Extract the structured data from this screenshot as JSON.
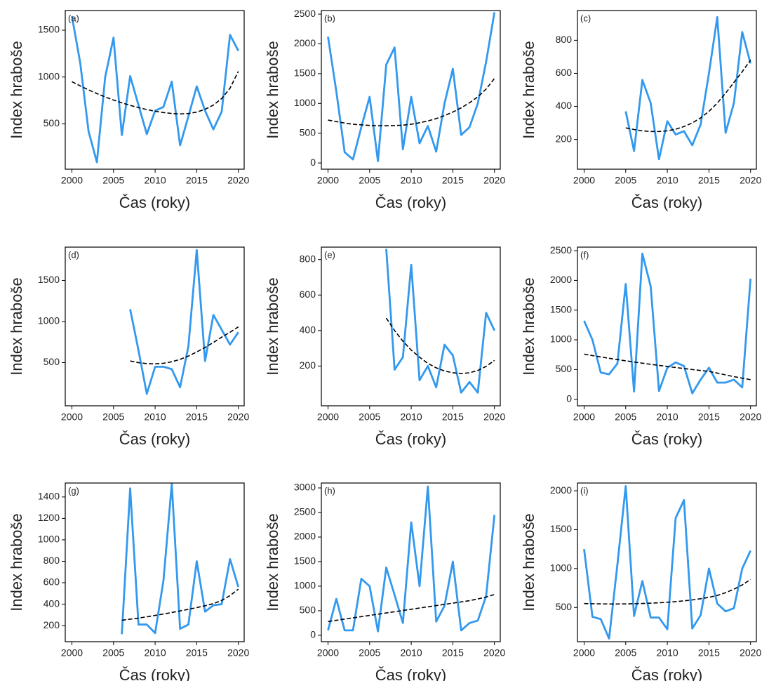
{
  "chart_data": [
    {
      "type": "line",
      "label": "(a)",
      "xlabel": "Čas (roky)",
      "ylabel": "Index hraboše",
      "x": [
        2000,
        2001,
        2002,
        2003,
        2004,
        2005,
        2006,
        2007,
        2008,
        2009,
        2010,
        2011,
        2012,
        2013,
        2014,
        2015,
        2016,
        2017,
        2018,
        2019,
        2020
      ],
      "series": [
        {
          "color": "#3399ee",
          "style": "solid",
          "values": [
            1650,
            1150,
            420,
            90,
            1000,
            1420,
            380,
            1010,
            700,
            390,
            640,
            680,
            950,
            270,
            580,
            900,
            640,
            440,
            630,
            1450,
            1280
          ]
        },
        {
          "color": "#000000",
          "style": "dashed",
          "values": [
            950,
            905,
            862,
            823,
            787,
            754,
            724,
            697,
            673,
            652,
            634,
            620,
            610,
            605,
            610,
            625,
            655,
            700,
            770,
            880,
            1060
          ]
        }
      ],
      "xlim": [
        1999.2,
        2020.7
      ],
      "xticks": [
        2000,
        2005,
        2010,
        2015,
        2020
      ],
      "ylim": [
        15,
        1710
      ],
      "yticks": [
        500,
        1000,
        1500
      ]
    },
    {
      "type": "line",
      "label": "(b)",
      "xlabel": "Čas (roky)",
      "ylabel": "Index hraboše",
      "x": [
        2000,
        2001,
        2002,
        2003,
        2004,
        2005,
        2006,
        2007,
        2008,
        2009,
        2010,
        2011,
        2012,
        2013,
        2014,
        2015,
        2016,
        2017,
        2018,
        2019,
        2020
      ],
      "series": [
        {
          "color": "#3399ee",
          "style": "solid",
          "values": [
            2120,
            1200,
            180,
            60,
            600,
            1110,
            30,
            1650,
            1940,
            230,
            1110,
            330,
            620,
            190,
            1000,
            1580,
            470,
            600,
            1000,
            1700,
            2530
          ]
        },
        {
          "color": "#000000",
          "style": "dashed",
          "values": [
            720,
            695,
            670,
            650,
            640,
            630,
            625,
            625,
            628,
            635,
            650,
            675,
            705,
            745,
            795,
            855,
            925,
            1010,
            1110,
            1240,
            1420
          ]
        }
      ],
      "xlim": [
        1999.2,
        2020.7
      ],
      "xticks": [
        2000,
        2005,
        2010,
        2015,
        2020
      ],
      "ylim": [
        -105,
        2560
      ],
      "yticks": [
        0,
        500,
        1000,
        1500,
        2000,
        2500
      ]
    },
    {
      "type": "line",
      "label": "(c)",
      "xlabel": "Čas (roky)",
      "ylabel": "Index hraboše",
      "x": [
        2000,
        2001,
        2002,
        2003,
        2004,
        2005,
        2006,
        2007,
        2008,
        2009,
        2010,
        2011,
        2012,
        2013,
        2014,
        2015,
        2016,
        2017,
        2018,
        2019,
        2020
      ],
      "series": [
        {
          "color": "#3399ee",
          "style": "solid",
          "values": [
            null,
            null,
            null,
            null,
            null,
            370,
            130,
            560,
            420,
            80,
            310,
            230,
            250,
            165,
            290,
            600,
            940,
            240,
            420,
            850,
            660
          ]
        },
        {
          "color": "#000000",
          "style": "dashed",
          "values": [
            null,
            null,
            null,
            null,
            null,
            270,
            260,
            252,
            248,
            248,
            252,
            262,
            278,
            300,
            330,
            370,
            420,
            480,
            545,
            610,
            680
          ]
        }
      ],
      "xlim": [
        1999.2,
        2020.7
      ],
      "xticks": [
        2000,
        2005,
        2010,
        2015,
        2020
      ],
      "ylim": [
        20,
        980
      ],
      "yticks": [
        200,
        400,
        600,
        800
      ]
    },
    {
      "type": "line",
      "label": "(d)",
      "xlabel": "Čas (roky)",
      "ylabel": "Index hraboše",
      "x": [
        2000,
        2001,
        2002,
        2003,
        2004,
        2005,
        2006,
        2007,
        2008,
        2009,
        2010,
        2011,
        2012,
        2013,
        2014,
        2015,
        2016,
        2017,
        2018,
        2019,
        2020
      ],
      "series": [
        {
          "color": "#3399ee",
          "style": "solid",
          "values": [
            null,
            null,
            null,
            null,
            null,
            null,
            null,
            1150,
            650,
            120,
            450,
            450,
            420,
            200,
            700,
            1870,
            520,
            1080,
            900,
            720,
            870
          ]
        },
        {
          "color": "#000000",
          "style": "dashed",
          "values": [
            null,
            null,
            null,
            null,
            null,
            null,
            null,
            520,
            500,
            488,
            485,
            492,
            510,
            540,
            580,
            630,
            685,
            745,
            810,
            870,
            935
          ]
        }
      ],
      "xlim": [
        1999.2,
        2020.7
      ],
      "xticks": [
        2000,
        2005,
        2010,
        2015,
        2020
      ],
      "ylim": [
        -25,
        1905
      ],
      "yticks": [
        500,
        1000,
        1500
      ]
    },
    {
      "type": "line",
      "label": "(e)",
      "xlabel": "Čas (roky)",
      "ylabel": "Index hraboše",
      "x": [
        2000,
        2001,
        2002,
        2003,
        2004,
        2005,
        2006,
        2007,
        2008,
        2009,
        2010,
        2011,
        2012,
        2013,
        2014,
        2015,
        2016,
        2017,
        2018,
        2019,
        2020
      ],
      "series": [
        {
          "color": "#3399ee",
          "style": "solid",
          "values": [
            null,
            null,
            null,
            null,
            null,
            null,
            null,
            860,
            180,
            250,
            770,
            120,
            200,
            80,
            320,
            260,
            50,
            110,
            50,
            500,
            400
          ]
        },
        {
          "color": "#000000",
          "style": "dashed",
          "values": [
            null,
            null,
            null,
            null,
            null,
            null,
            null,
            470,
            400,
            340,
            290,
            250,
            215,
            190,
            172,
            162,
            158,
            162,
            175,
            198,
            232
          ]
        }
      ],
      "xlim": [
        1999.2,
        2020.7
      ],
      "xticks": [
        2000,
        2005,
        2010,
        2015,
        2020
      ],
      "ylim": [
        -24,
        870
      ],
      "yticks": [
        200,
        400,
        600,
        800
      ]
    },
    {
      "type": "line",
      "label": "(f)",
      "xlabel": "Čas (roky)",
      "ylabel": "Index hraboše",
      "x": [
        2000,
        2001,
        2002,
        2003,
        2004,
        2005,
        2006,
        2007,
        2008,
        2009,
        2010,
        2011,
        2012,
        2013,
        2014,
        2015,
        2016,
        2017,
        2018,
        2019,
        2020
      ],
      "series": [
        {
          "color": "#3399ee",
          "style": "solid",
          "values": [
            1320,
            1000,
            450,
            420,
            600,
            1940,
            130,
            2450,
            1900,
            140,
            530,
            620,
            560,
            100,
            330,
            530,
            280,
            280,
            330,
            200,
            2030
          ]
        },
        {
          "color": "#000000",
          "style": "dashed",
          "values": [
            760,
            735,
            712,
            690,
            668,
            647,
            627,
            607,
            588,
            570,
            552,
            534,
            517,
            500,
            484,
            468,
            440,
            410,
            380,
            355,
            330
          ]
        }
      ],
      "xlim": [
        1999.2,
        2020.7
      ],
      "xticks": [
        2000,
        2005,
        2010,
        2015,
        2020
      ],
      "ylim": [
        -110,
        2560
      ],
      "yticks": [
        0,
        500,
        1000,
        1500,
        2000,
        2500
      ]
    },
    {
      "type": "line",
      "label": "(g)",
      "xlabel": "Čas (roky)",
      "ylabel": "Index hraboše",
      "x": [
        2000,
        2001,
        2002,
        2003,
        2004,
        2005,
        2006,
        2007,
        2008,
        2009,
        2010,
        2011,
        2012,
        2013,
        2014,
        2015,
        2016,
        2017,
        2018,
        2019,
        2020
      ],
      "series": [
        {
          "color": "#3399ee",
          "style": "solid",
          "values": [
            null,
            null,
            null,
            null,
            null,
            null,
            120,
            1480,
            210,
            210,
            130,
            620,
            1520,
            170,
            210,
            800,
            330,
            390,
            400,
            820,
            560
          ]
        },
        {
          "color": "#000000",
          "style": "dashed",
          "values": [
            null,
            null,
            null,
            null,
            null,
            null,
            250,
            260,
            270,
            282,
            295,
            308,
            322,
            337,
            352,
            368,
            385,
            405,
            435,
            480,
            540
          ]
        }
      ],
      "xlim": [
        1999.2,
        2020.7
      ],
      "xticks": [
        2000,
        2005,
        2010,
        2015,
        2020
      ],
      "ylim": [
        50,
        1530
      ],
      "yticks": [
        200,
        400,
        600,
        800,
        1000,
        1200,
        1400
      ]
    },
    {
      "type": "line",
      "label": "(h)",
      "xlabel": "Čas (roky)",
      "ylabel": "Index hraboše",
      "x": [
        2000,
        2001,
        2002,
        2003,
        2004,
        2005,
        2006,
        2007,
        2008,
        2009,
        2010,
        2011,
        2012,
        2013,
        2014,
        2015,
        2016,
        2017,
        2018,
        2019,
        2020
      ],
      "series": [
        {
          "color": "#3399ee",
          "style": "solid",
          "values": [
            100,
            740,
            100,
            100,
            1150,
            1000,
            80,
            1380,
            820,
            250,
            2300,
            1000,
            3030,
            280,
            600,
            1500,
            100,
            250,
            300,
            800,
            2450
          ]
        },
        {
          "color": "#000000",
          "style": "dashed",
          "values": [
            280,
            305,
            330,
            355,
            380,
            405,
            430,
            455,
            480,
            505,
            530,
            555,
            580,
            605,
            630,
            655,
            680,
            705,
            740,
            780,
            830
          ]
        }
      ],
      "xlim": [
        1999.2,
        2020.7
      ],
      "xticks": [
        2000,
        2005,
        2010,
        2015,
        2020
      ],
      "ylim": [
        -130,
        3100
      ],
      "yticks": [
        0,
        500,
        1000,
        1500,
        2000,
        2500,
        3000
      ]
    },
    {
      "type": "line",
      "label": "(i)",
      "xlabel": "Čas (roky)",
      "ylabel": "Index hraboše",
      "x": [
        2000,
        2001,
        2002,
        2003,
        2004,
        2005,
        2006,
        2007,
        2008,
        2009,
        2010,
        2011,
        2012,
        2013,
        2014,
        2015,
        2016,
        2017,
        2018,
        2019,
        2020
      ],
      "series": [
        {
          "color": "#3399ee",
          "style": "solid",
          "values": [
            1250,
            380,
            350,
            100,
            1050,
            2060,
            390,
            840,
            370,
            370,
            220,
            1650,
            1880,
            230,
            400,
            1000,
            550,
            450,
            490,
            1000,
            1230
          ]
        },
        {
          "color": "#000000",
          "style": "dashed",
          "values": [
            550,
            548,
            546,
            545,
            545,
            546,
            548,
            551,
            555,
            560,
            567,
            575,
            585,
            597,
            612,
            630,
            655,
            690,
            735,
            790,
            860
          ]
        }
      ],
      "xlim": [
        1999.2,
        2020.7
      ],
      "xticks": [
        2000,
        2005,
        2010,
        2015,
        2020
      ],
      "ylim": [
        60,
        2100
      ],
      "yticks": [
        500,
        1000,
        1500,
        2000
      ]
    }
  ]
}
